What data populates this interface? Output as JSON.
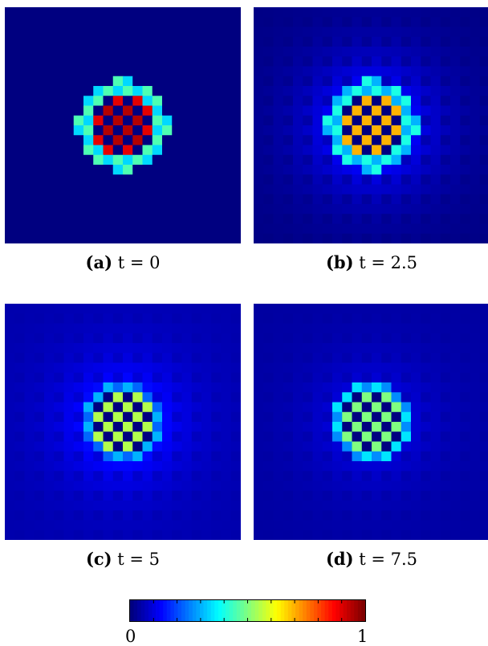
{
  "chart_data": [
    {
      "type": "heatmap",
      "panel_label": "(a)",
      "subtitle": "t = 0",
      "grid_size": [
        24,
        24
      ],
      "pattern": "checkerboard inside circular disk at center, uniform 0 background",
      "disk_radius_cells": 4.5,
      "disk_values": {
        "light_cells": 0.9,
        "dark_cells": 0.0,
        "rim": 0.45
      },
      "background_value": 0.0,
      "halo_amplitude": 0.0,
      "clim": [
        0,
        1
      ]
    },
    {
      "type": "heatmap",
      "panel_label": "(b)",
      "subtitle": "t = 2.5",
      "grid_size": [
        24,
        24
      ],
      "pattern": "checkerboard inside circular disk, faint spreading halo",
      "disk_radius_cells": 4.5,
      "disk_values": {
        "light_cells": 0.7,
        "dark_cells": 0.0,
        "rim": 0.4
      },
      "background_value": 0.0,
      "halo_amplitude": 0.12,
      "clim": [
        0,
        1
      ]
    },
    {
      "type": "heatmap",
      "panel_label": "(c)",
      "subtitle": "t = 5",
      "grid_size": [
        24,
        24
      ],
      "pattern": "checkerboard inside circular disk, spreading halo across field",
      "disk_radius_cells": 4.0,
      "disk_values": {
        "light_cells": 0.55,
        "dark_cells": 0.0,
        "rim": 0.3
      },
      "background_value": 0.04,
      "halo_amplitude": 0.1,
      "clim": [
        0,
        1
      ]
    },
    {
      "type": "heatmap",
      "panel_label": "(d)",
      "subtitle": "t = 7.5",
      "grid_size": [
        24,
        24
      ],
      "pattern": "checkerboard inside circular disk, weak uniform halo",
      "disk_radius_cells": 4.0,
      "disk_values": {
        "light_cells": 0.5,
        "dark_cells": 0.0,
        "rim": 0.35
      },
      "background_value": 0.03,
      "halo_amplitude": 0.06,
      "clim": [
        0,
        1
      ]
    }
  ],
  "colorbar": {
    "colormap": "jet",
    "min_label": "0",
    "max_label": "1",
    "clim": [
      0,
      1
    ]
  }
}
